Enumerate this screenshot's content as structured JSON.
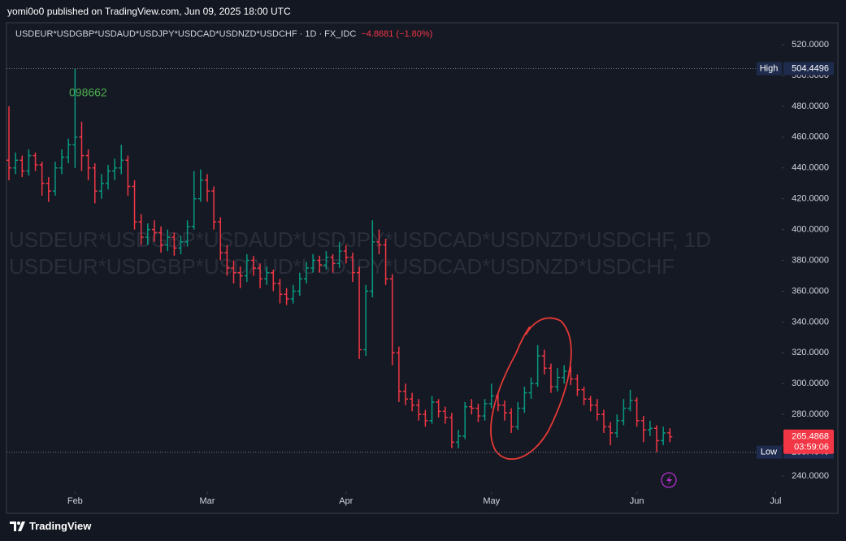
{
  "header": {
    "publisher": "yomi0o0 published on TradingView.com, Jun 09, 2025 18:00 UTC"
  },
  "footer": {
    "brand": "TradingView"
  },
  "chart_data": {
    "type": "ohlc",
    "symbol": "USDEUR*USDGBP*USDAUD*USDJPY*USDCAD*USDNZD*USDCHF · 1D · FX_IDC",
    "change": "−4.8681 (−1.80%)",
    "watermark": [
      "USDEUR*USDGBP*USDAUD*USDJPY*USDCAD*USDNZD*USDCHF, 1D",
      "USDEUR*USDGBP*USDAUD*USDJPY*USDCAD*USDNZD*USDCHF"
    ],
    "annotation": "098662",
    "high_label": "High",
    "low_label": "Low",
    "countdown": "03:59:06",
    "up_color": "#089981",
    "down_color": "#f23645",
    "grid": false,
    "xlim": [
      -0.37,
      116.93
    ],
    "ylim": [
      230,
      534.24
    ],
    "xticks": [
      {
        "value": 10,
        "label": "Feb"
      },
      {
        "value": 30,
        "label": "Mar"
      },
      {
        "value": 51,
        "label": "Apr"
      },
      {
        "value": 73,
        "label": "May"
      },
      {
        "value": 95,
        "label": "Jun"
      },
      {
        "value": 116,
        "label": "Jul"
      }
    ],
    "yticks": [
      {
        "value": 240,
        "label": "240.0000"
      },
      {
        "value": 260,
        "label": "260.0000"
      },
      {
        "value": 280,
        "label": "280.0000"
      },
      {
        "value": 300,
        "label": "300.0000"
      },
      {
        "value": 320,
        "label": "320.0000"
      },
      {
        "value": 340,
        "label": "340.0000"
      },
      {
        "value": 360,
        "label": "360.0000"
      },
      {
        "value": 380,
        "label": "380.0000"
      },
      {
        "value": 400,
        "label": "400.0000"
      },
      {
        "value": 420,
        "label": "420.0000"
      },
      {
        "value": 440,
        "label": "440.0000"
      },
      {
        "value": 460,
        "label": "460.0000"
      },
      {
        "value": 480,
        "label": "480.0000"
      },
      {
        "value": 500,
        "label": "500.0000"
      },
      {
        "value": 520,
        "label": "520.0000"
      }
    ],
    "ohlc": [
      [
        445,
        480,
        432,
        440
      ],
      [
        440,
        450,
        436,
        445
      ],
      [
        445,
        448,
        434,
        438
      ],
      [
        438,
        452,
        435,
        448
      ],
      [
        448,
        450,
        438,
        442
      ],
      [
        442,
        444,
        422,
        430
      ],
      [
        430,
        434,
        418,
        425
      ],
      [
        425,
        444,
        422,
        440
      ],
      [
        440,
        452,
        436,
        447
      ],
      [
        447,
        459,
        443,
        455
      ],
      [
        455,
        504.4496,
        440,
        460
      ],
      [
        460,
        470,
        438,
        448
      ],
      [
        448,
        452,
        432,
        440
      ],
      [
        440,
        443,
        417,
        425
      ],
      [
        425,
        436,
        420,
        430
      ],
      [
        430,
        442,
        426,
        438
      ],
      [
        438,
        446,
        432,
        440
      ],
      [
        440,
        455,
        436,
        445
      ],
      [
        445,
        448,
        422,
        428
      ],
      [
        428,
        432,
        400,
        405
      ],
      [
        405,
        410,
        390,
        395
      ],
      [
        395,
        404,
        390,
        400
      ],
      [
        400,
        406,
        392,
        398
      ],
      [
        398,
        402,
        385,
        390
      ],
      [
        390,
        400,
        386,
        395
      ],
      [
        395,
        398,
        383,
        388
      ],
      [
        388,
        396,
        384,
        392
      ],
      [
        392,
        406,
        389,
        402
      ],
      [
        402,
        438,
        400,
        420
      ],
      [
        420,
        439,
        418,
        432
      ],
      [
        432,
        436,
        418,
        425
      ],
      [
        425,
        428,
        400,
        405
      ],
      [
        405,
        408,
        380,
        385
      ],
      [
        385,
        390,
        370,
        375
      ],
      [
        375,
        380,
        365,
        372
      ],
      [
        372,
        376,
        362,
        370
      ],
      [
        370,
        384,
        366,
        380
      ],
      [
        380,
        383,
        370,
        375
      ],
      [
        375,
        378,
        362,
        368
      ],
      [
        368,
        376,
        364,
        372
      ],
      [
        372,
        374,
        360,
        365
      ],
      [
        365,
        368,
        352,
        358
      ],
      [
        358,
        362,
        351,
        355
      ],
      [
        355,
        364,
        352,
        360
      ],
      [
        360,
        372,
        357,
        368
      ],
      [
        368,
        379,
        365,
        375
      ],
      [
        375,
        384,
        372,
        380
      ],
      [
        380,
        383,
        372,
        377
      ],
      [
        377,
        386,
        374,
        382
      ],
      [
        382,
        384,
        372,
        378
      ],
      [
        378,
        392,
        375,
        386
      ],
      [
        386,
        390,
        378,
        382
      ],
      [
        382,
        385,
        366,
        372
      ],
      [
        372,
        376,
        316,
        322
      ],
      [
        322,
        364,
        318,
        360
      ],
      [
        360,
        406,
        356,
        392
      ],
      [
        392,
        400,
        384,
        390
      ],
      [
        390,
        394,
        364,
        368
      ],
      [
        368,
        371,
        312,
        320
      ],
      [
        320,
        324,
        288,
        295
      ],
      [
        295,
        300,
        286,
        290
      ],
      [
        290,
        294,
        282,
        286
      ],
      [
        286,
        290,
        276,
        280
      ],
      [
        280,
        283,
        272,
        276
      ],
      [
        276,
        292,
        274,
        288
      ],
      [
        288,
        290,
        278,
        282
      ],
      [
        282,
        285,
        274,
        278
      ],
      [
        278,
        281,
        258,
        262
      ],
      [
        262,
        270,
        258,
        266
      ],
      [
        266,
        288,
        264,
        285
      ],
      [
        285,
        290,
        280,
        284
      ],
      [
        284,
        287,
        275,
        279
      ],
      [
        279,
        290,
        276,
        287
      ],
      [
        287,
        300,
        284,
        292
      ],
      [
        292,
        294,
        282,
        286
      ],
      [
        286,
        289,
        276,
        281
      ],
      [
        281,
        284,
        268,
        272
      ],
      [
        272,
        288,
        270,
        284
      ],
      [
        284,
        298,
        281,
        294
      ],
      [
        294,
        304,
        290,
        300
      ],
      [
        300,
        325,
        298,
        318
      ],
      [
        318,
        322,
        306,
        310
      ],
      [
        310,
        313,
        294,
        298
      ],
      [
        298,
        310,
        295,
        304
      ],
      [
        304,
        312,
        300,
        308
      ],
      [
        308,
        311,
        299,
        303
      ],
      [
        303,
        306,
        292,
        296
      ],
      [
        296,
        298,
        286,
        290
      ],
      [
        290,
        292,
        282,
        286
      ],
      [
        286,
        290,
        276,
        280
      ],
      [
        280,
        283,
        268,
        272
      ],
      [
        272,
        275,
        260,
        268
      ],
      [
        268,
        280,
        265,
        276
      ],
      [
        276,
        290,
        273,
        284
      ],
      [
        284,
        296,
        282,
        289
      ],
      [
        289,
        291,
        272,
        276
      ],
      [
        276,
        279,
        262,
        270
      ],
      [
        270,
        276,
        266,
        271
      ],
      [
        271,
        273,
        255.4646,
        263
      ],
      [
        263,
        272,
        260,
        268
      ],
      [
        268,
        271,
        262,
        265.4868
      ]
    ]
  }
}
